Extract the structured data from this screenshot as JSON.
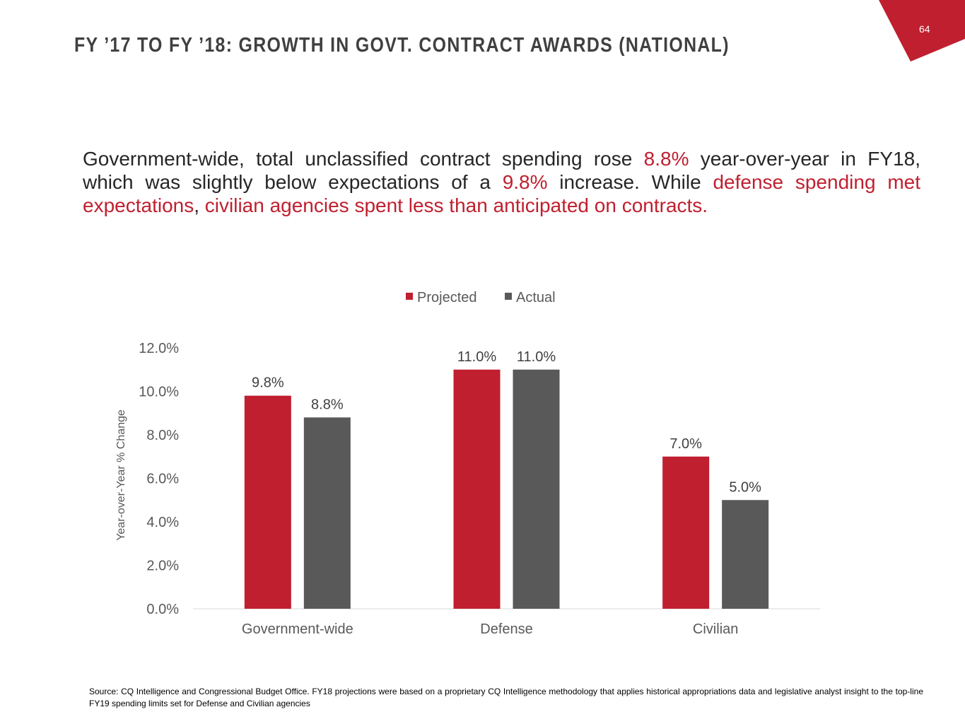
{
  "page_number": "64",
  "title": "FY ’17 TO FY ’18: GROWTH IN GOVT. CONTRACT AWARDS (NATIONAL)",
  "paragraph": {
    "s1": "Government-wide, total unclassified contract spending rose ",
    "s2": "8.8%",
    "s3": " year-over-year in FY18, which was slightly below expectations of a ",
    "s4": "9.8%",
    "s5": " increase. While ",
    "s6": "defense spending met expectations",
    "s7": ", ",
    "s8": "civilian agencies spent less than anticipated on contracts."
  },
  "source": "Source: CQ Intelligence and Congressional Budget Office. FY18 projections were based on a proprietary CQ Intelligence methodology that applies historical appropriations data and legislative analyst insight to the top-line FY19 spending limits set for Defense and Civilian agencies",
  "colors": {
    "accent": "#c01f2f",
    "actual": "#595959"
  },
  "chart_data": {
    "type": "bar",
    "categories": [
      "Government-wide",
      "Defense",
      "Civilian"
    ],
    "series": [
      {
        "name": "Projected",
        "values": [
          9.8,
          11.0,
          7.0
        ],
        "color": "#c01f2f"
      },
      {
        "name": "Actual",
        "values": [
          8.8,
          11.0,
          5.0
        ],
        "color": "#595959"
      }
    ],
    "data_labels": [
      [
        "9.8%",
        "11.0%",
        "7.0%"
      ],
      [
        "8.8%",
        "11.0%",
        "5.0%"
      ]
    ],
    "ylabel": "Year-over-Year % Change",
    "xlabel": "",
    "ylim": [
      0,
      12
    ],
    "yticks": [
      "0.0%",
      "2.0%",
      "4.0%",
      "6.0%",
      "8.0%",
      "10.0%",
      "12.0%"
    ],
    "legend": "top",
    "grid": false
  }
}
